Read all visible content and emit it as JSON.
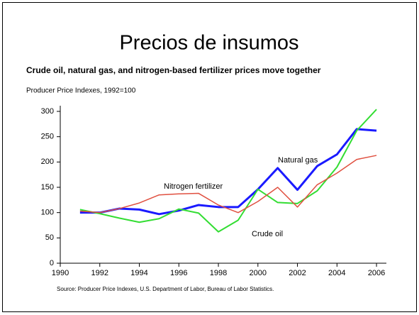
{
  "chart_data": {
    "type": "line",
    "title": "Precios de insumos",
    "subtitle": "Crude oil, natural gas, and nitrogen-based fertilizer prices move together",
    "y_axis_label": "Producer Price Indexes, 1992=100",
    "source": "Source: Producer Price Indexes, U.S. Department of Labor, Bureau of Labor Statistics.",
    "x": [
      1991,
      1992,
      1993,
      1994,
      1995,
      1996,
      1997,
      1998,
      1999,
      2000,
      2001,
      2002,
      2003,
      2004,
      2005,
      2006
    ],
    "series": [
      {
        "name": "Natural gas",
        "color": "#1a1aff",
        "values": [
          100,
          100,
          108,
          106,
          97,
          104,
          115,
          111,
          111,
          146,
          188,
          145,
          192,
          215,
          265,
          262
        ]
      },
      {
        "name": "Crude oil",
        "color": "#33dd33",
        "values": [
          106,
          98,
          89,
          81,
          88,
          107,
          99,
          62,
          85,
          146,
          120,
          118,
          143,
          190,
          262,
          304
        ]
      },
      {
        "name": "Nitrogen fertilizer",
        "color": "#e05040",
        "values": [
          103,
          100,
          108,
          119,
          135,
          137,
          138,
          115,
          100,
          122,
          150,
          111,
          155,
          178,
          205,
          213
        ]
      }
    ],
    "xlim": [
      1990,
      2006.5
    ],
    "ylim": [
      0,
      300
    ],
    "xticks": [
      1990,
      1992,
      1994,
      1996,
      1998,
      2000,
      2002,
      2004,
      2006
    ],
    "yticks": [
      0,
      50,
      100,
      150,
      200,
      250,
      300
    ],
    "grid": false
  }
}
